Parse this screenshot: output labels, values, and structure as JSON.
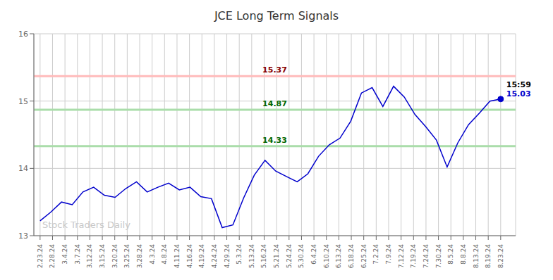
{
  "chart_data": {
    "type": "line",
    "title": "JCE Long Term Signals",
    "color": "#0000cc",
    "x": [
      0,
      0.860465,
      1.72093,
      2.581395,
      3.44186,
      4.302326,
      5.162791,
      6.023256,
      6.883721,
      7.744186,
      8.604651,
      9.465116,
      10.325581,
      11.186047,
      12.046512,
      12.906977,
      13.767442,
      14.627907,
      15.488372,
      16.348837,
      17.209302,
      18.069767,
      18.930233,
      19.790698,
      20.651163,
      21.511628,
      22.372093,
      23.232558,
      24.093023,
      24.953488,
      25.813953,
      26.674419,
      27.534884,
      28.395349,
      29.255814,
      30.116279,
      30.976744,
      31.837209,
      32.697674,
      33.55814,
      34.418605,
      35.27907,
      36.139535,
      37
    ],
    "values": [
      13.22,
      13.35,
      13.5,
      13.46,
      13.65,
      13.72,
      13.6,
      13.57,
      13.7,
      13.8,
      13.65,
      13.72,
      13.78,
      13.68,
      13.72,
      13.58,
      13.55,
      13.12,
      13.16,
      13.56,
      13.9,
      14.12,
      13.96,
      13.88,
      13.8,
      13.92,
      14.18,
      14.35,
      14.45,
      14.7,
      15.12,
      15.2,
      14.92,
      15.22,
      15.06,
      14.8,
      14.62,
      14.42,
      14.02,
      14.38,
      14.65,
      14.82,
      15.0,
      15.03
    ],
    "xlim": [
      -0.5,
      38.2
    ],
    "xticks": [
      {
        "value": 0,
        "label": "2.23.24"
      },
      {
        "value": 1,
        "label": "2.28.24"
      },
      {
        "value": 2,
        "label": "3.4.24"
      },
      {
        "value": 3,
        "label": "3.7.24"
      },
      {
        "value": 4,
        "label": "3.12.24"
      },
      {
        "value": 5,
        "label": "3.15.24"
      },
      {
        "value": 6,
        "label": "3.20.24"
      },
      {
        "value": 7,
        "label": "3.25.24"
      },
      {
        "value": 8,
        "label": "3.28.24"
      },
      {
        "value": 9,
        "label": "4.3.24"
      },
      {
        "value": 10,
        "label": "4.8.24"
      },
      {
        "value": 11,
        "label": "4.11.24"
      },
      {
        "value": 12,
        "label": "4.16.24"
      },
      {
        "value": 13,
        "label": "4.19.24"
      },
      {
        "value": 14,
        "label": "4.24.24"
      },
      {
        "value": 15,
        "label": "4.29.24"
      },
      {
        "value": 16,
        "label": "5.3.24"
      },
      {
        "value": 17,
        "label": "5.13.24"
      },
      {
        "value": 18,
        "label": "5.16.24"
      },
      {
        "value": 19,
        "label": "5.21.24"
      },
      {
        "value": 20,
        "label": "5.24.24"
      },
      {
        "value": 21,
        "label": "5.30.24"
      },
      {
        "value": 22,
        "label": "6.4.24"
      },
      {
        "value": 23,
        "label": "6.10.24"
      },
      {
        "value": 24,
        "label": "6.13.24"
      },
      {
        "value": 25,
        "label": "6.18.24"
      },
      {
        "value": 26,
        "label": "6.25.24"
      },
      {
        "value": 27,
        "label": "7.2.24"
      },
      {
        "value": 28,
        "label": "7.9.24"
      },
      {
        "value": 29,
        "label": "7.12.24"
      },
      {
        "value": 30,
        "label": "7.19.24"
      },
      {
        "value": 31,
        "label": "7.24.24"
      },
      {
        "value": 32,
        "label": "7.30.24"
      },
      {
        "value": 33,
        "label": "8.5.24"
      },
      {
        "value": 34,
        "label": "8.8.24"
      },
      {
        "value": 35,
        "label": "8.13.24"
      },
      {
        "value": 36,
        "label": "8.19.24"
      },
      {
        "value": 37,
        "label": "8.23.24"
      }
    ],
    "ylim": [
      13,
      16
    ],
    "yticks": [
      13,
      14,
      15,
      16
    ],
    "grid": true,
    "hlines": [
      {
        "value": 15.37,
        "label": "15.37",
        "color": "#ffbbbb",
        "label_color": "#880000"
      },
      {
        "value": 14.87,
        "label": "14.87",
        "color": "#aaddaa",
        "label_color": "#006600"
      },
      {
        "value": 14.33,
        "label": "14.33",
        "color": "#aaddaa",
        "label_color": "#006600"
      }
    ],
    "annotations": [
      {
        "text": "15:59",
        "x": 37,
        "y": 15.03
      },
      {
        "text": "15.03",
        "x": 37,
        "y": 15.03,
        "color": "#0000cc"
      }
    ],
    "watermark": {
      "text": "Stock Traders Daily",
      "color": "#c8c8c8"
    }
  }
}
